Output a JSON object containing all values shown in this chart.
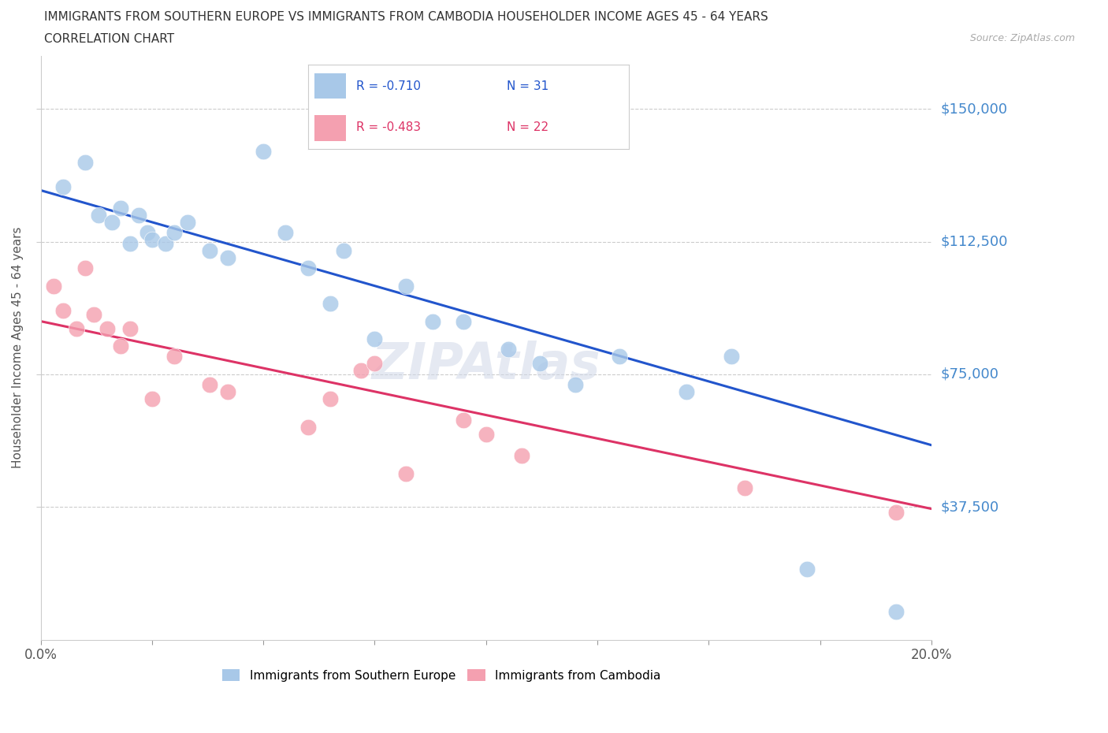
{
  "title_line1": "IMMIGRANTS FROM SOUTHERN EUROPE VS IMMIGRANTS FROM CAMBODIA HOUSEHOLDER INCOME AGES 45 - 64 YEARS",
  "title_line2": "CORRELATION CHART",
  "source_text": "Source: ZipAtlas.com",
  "ylabel": "Householder Income Ages 45 - 64 years",
  "xlim": [
    0.0,
    0.2
  ],
  "ylim": [
    0,
    165000
  ],
  "ytick_vals": [
    37500,
    75000,
    112500,
    150000
  ],
  "ytick_labels": [
    "$37,500",
    "$75,000",
    "$112,500",
    "$150,000"
  ],
  "xticks": [
    0.0,
    0.025,
    0.05,
    0.075,
    0.1,
    0.125,
    0.15,
    0.175,
    0.2
  ],
  "xtick_labels_show": [
    "0.0%",
    "",
    "",
    "",
    "",
    "",
    "",
    "",
    "20.0%"
  ],
  "blue_color": "#a8c8e8",
  "pink_color": "#f4a0b0",
  "blue_line_color": "#2255cc",
  "pink_line_color": "#dd3366",
  "ytick_label_color": "#4488cc",
  "legend_R_blue": "R = -0.710",
  "legend_N_blue": "N = 31",
  "legend_R_pink": "R = -0.483",
  "legend_N_pink": "N = 22",
  "legend_label_blue": "Immigrants from Southern Europe",
  "legend_label_pink": "Immigrants from Cambodia",
  "watermark": "ZIPAtlas",
  "blue_x": [
    0.005,
    0.01,
    0.013,
    0.016,
    0.018,
    0.02,
    0.022,
    0.024,
    0.025,
    0.028,
    0.03,
    0.033,
    0.038,
    0.042,
    0.05,
    0.055,
    0.06,
    0.065,
    0.068,
    0.075,
    0.082,
    0.088,
    0.095,
    0.105,
    0.112,
    0.12,
    0.13,
    0.145,
    0.155,
    0.172,
    0.192
  ],
  "blue_y": [
    128000,
    135000,
    120000,
    118000,
    122000,
    112000,
    120000,
    115000,
    113000,
    112000,
    115000,
    118000,
    110000,
    108000,
    138000,
    115000,
    105000,
    95000,
    110000,
    85000,
    100000,
    90000,
    90000,
    82000,
    78000,
    72000,
    80000,
    70000,
    80000,
    20000,
    8000
  ],
  "pink_x": [
    0.003,
    0.005,
    0.008,
    0.01,
    0.012,
    0.015,
    0.018,
    0.02,
    0.025,
    0.03,
    0.038,
    0.042,
    0.06,
    0.065,
    0.072,
    0.075,
    0.082,
    0.095,
    0.1,
    0.108,
    0.158,
    0.192
  ],
  "pink_y": [
    100000,
    93000,
    88000,
    105000,
    92000,
    88000,
    83000,
    88000,
    68000,
    80000,
    72000,
    70000,
    60000,
    68000,
    76000,
    78000,
    47000,
    62000,
    58000,
    52000,
    43000,
    36000
  ],
  "blue_line_x0": 0.0,
  "blue_line_y0": 127000,
  "blue_line_x1": 0.2,
  "blue_line_y1": 55000,
  "pink_line_x0": 0.0,
  "pink_line_y0": 90000,
  "pink_line_x1": 0.2,
  "pink_line_y1": 37000
}
